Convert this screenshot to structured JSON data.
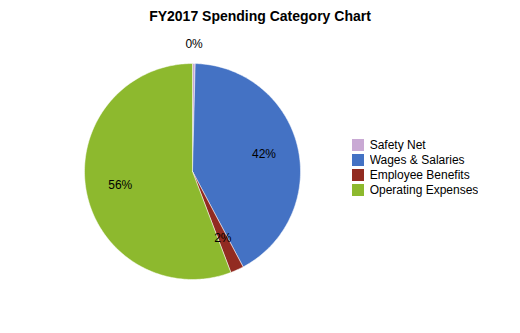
{
  "chart_data": {
    "type": "pie",
    "title": "FY2017 Spending Category Chart",
    "categories": [
      "Safety Net",
      "Wages & Salaries",
      "Employee Benefits",
      "Operating Expenses"
    ],
    "values": [
      0.4,
      42,
      2,
      56
    ],
    "value_labels": [
      "0%",
      "42%",
      "2%",
      "56%"
    ],
    "colors": [
      "#C9A9D4",
      "#4472C4",
      "#922B21",
      "#8DB92E"
    ],
    "data_labels": true,
    "legend": "right"
  }
}
